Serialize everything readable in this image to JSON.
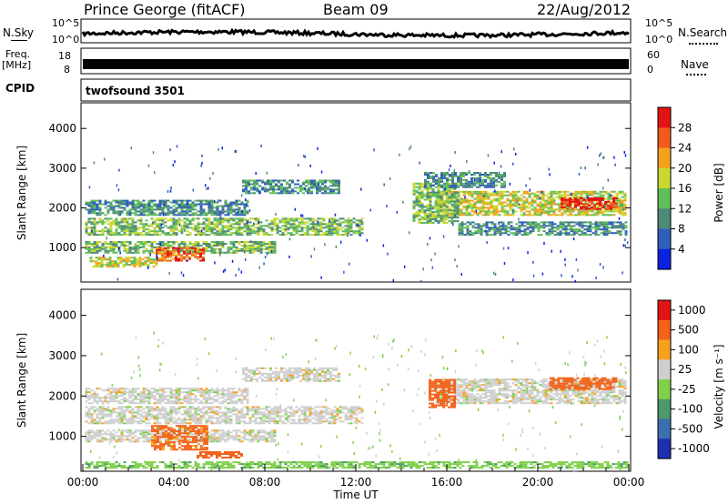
{
  "header": {
    "station": "Prince George (fitACF)",
    "beam": "Beam 09",
    "date": "22/Aug/2012"
  },
  "top_panels": {
    "nsky_label": "N.Sky",
    "nsky_ticks": [
      "10^5",
      "10^0"
    ],
    "nsearch_label": "N.Search",
    "nsearch_ticks": [
      "10^5",
      "10^0"
    ],
    "freq_label_line1": "Freq.",
    "freq_label_line2": "[MHz]",
    "freq_ticks": [
      "18",
      "8"
    ],
    "nave_label": "Nave",
    "nave_ticks": [
      "60",
      "0"
    ],
    "cpid_label": "CPID",
    "cpid_value": "twofsound 3501"
  },
  "chart_data": [
    {
      "type": "heatmap",
      "name": "power-panel",
      "ylabel": "Slant Range [km]",
      "yticks": [
        1000,
        2000,
        3000,
        4000
      ],
      "ylim": [
        180,
        4600
      ],
      "xlim": [
        0,
        24
      ],
      "colorbar_label": "Power [dB]",
      "colorbar_ticks": [
        4,
        8,
        12,
        16,
        20,
        24,
        28
      ],
      "colorbar_colors": [
        "#0a22e0",
        "#2f5fbd",
        "#4f8a78",
        "#5fbf5a",
        "#c8d830",
        "#f4a11e",
        "#f15a1a",
        "#e31414"
      ],
      "echo_bands": [
        {
          "t0": 0.1,
          "t1": 12.3,
          "r0": 1300,
          "r1": 1750,
          "level": 10
        },
        {
          "t0": 0.1,
          "t1": 7.2,
          "r0": 1800,
          "r1": 2200,
          "level": 9
        },
        {
          "t0": 7.0,
          "t1": 11.2,
          "r0": 2350,
          "r1": 2700,
          "level": 8
        },
        {
          "t0": 0.1,
          "t1": 8.5,
          "r0": 850,
          "r1": 1150,
          "level": 12
        },
        {
          "t0": 3.2,
          "t1": 5.3,
          "r0": 650,
          "r1": 1000,
          "level": 24
        },
        {
          "t0": 0.3,
          "t1": 3.2,
          "r0": 500,
          "r1": 750,
          "level": 16
        },
        {
          "t0": 15.5,
          "t1": 23.9,
          "r0": 1800,
          "r1": 2400,
          "level": 16
        },
        {
          "t0": 16.5,
          "t1": 23.9,
          "r0": 1300,
          "r1": 1650,
          "level": 8
        },
        {
          "t0": 14.5,
          "t1": 16.5,
          "r0": 1600,
          "r1": 2600,
          "level": 12
        },
        {
          "t0": 21.0,
          "t1": 23.5,
          "r0": 1950,
          "r1": 2250,
          "level": 26
        },
        {
          "t0": 15.0,
          "t1": 18.5,
          "r0": 2500,
          "r1": 2900,
          "level": 6
        }
      ]
    },
    {
      "type": "heatmap",
      "name": "velocity-panel",
      "ylabel": "Slant Range [km]",
      "yticks": [
        1000,
        2000,
        3000,
        4000
      ],
      "ylim": [
        180,
        4600
      ],
      "xlim": [
        0,
        24
      ],
      "xticks": [
        "00:00",
        "04:00",
        "08:00",
        "12:00",
        "16:00",
        "20:00",
        "00:00"
      ],
      "xlabel": "Time UT",
      "colorbar_label": "Velocity [m s⁻¹]",
      "colorbar_ticks": [
        "1000",
        "500",
        "100",
        "25",
        "-25",
        "-100",
        "-500",
        "-1000"
      ],
      "colorbar_colors": [
        "#1f2fb0",
        "#3a6fb0",
        "#4b9a6a",
        "#7fd04a",
        "#cfcfcf",
        "#f7a11e",
        "#f4621a",
        "#e31414"
      ],
      "echo_bands": [
        {
          "t0": 0.1,
          "t1": 12.3,
          "r0": 1300,
          "r1": 1750,
          "v": 0
        },
        {
          "t0": 0.1,
          "t1": 7.2,
          "r0": 1800,
          "r1": 2200,
          "v": 0
        },
        {
          "t0": 7.0,
          "t1": 11.2,
          "r0": 2350,
          "r1": 2700,
          "v": 0
        },
        {
          "t0": 0.1,
          "t1": 8.5,
          "r0": 850,
          "r1": 1150,
          "v": 0
        },
        {
          "t0": 3.0,
          "t1": 5.5,
          "r0": 650,
          "r1": 1250,
          "v": -120
        },
        {
          "t0": 5.0,
          "t1": 7.0,
          "r0": 450,
          "r1": 600,
          "v": -150
        },
        {
          "t0": 15.5,
          "t1": 23.9,
          "r0": 1800,
          "r1": 2400,
          "v": 0
        },
        {
          "t0": 20.5,
          "t1": 23.5,
          "r0": 2150,
          "r1": 2450,
          "v": -300
        },
        {
          "t0": 15.2,
          "t1": 16.4,
          "r0": 1700,
          "r1": 2400,
          "v": -150
        },
        {
          "t0": 0.1,
          "t1": 23.9,
          "r0": 200,
          "r1": 380,
          "v": 60
        }
      ]
    }
  ]
}
